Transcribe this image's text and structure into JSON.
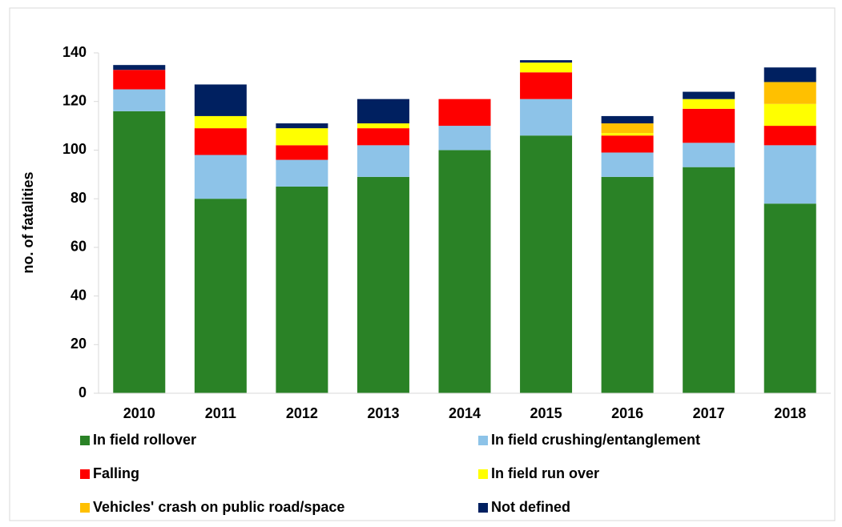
{
  "chart_data": {
    "type": "stacked_bar",
    "y_label": "no. of fatalities",
    "categories": [
      "2010",
      "2011",
      "2012",
      "2013",
      "2014",
      "2015",
      "2016",
      "2017",
      "2018"
    ],
    "series": [
      {
        "name": "In field rollover",
        "color": "#2a8226",
        "values": [
          116,
          80,
          85,
          89,
          100,
          106,
          89,
          93,
          78
        ]
      },
      {
        "name": "In field crushing/entanglement",
        "color": "#8dc3e8",
        "values": [
          9,
          18,
          11,
          13,
          10,
          15,
          10,
          10,
          24
        ]
      },
      {
        "name": "Falling",
        "color": "#fe0000",
        "values": [
          8,
          11,
          6,
          7,
          11,
          11,
          7,
          14,
          8
        ]
      },
      {
        "name": "In field run over",
        "color": "#ffff00",
        "values": [
          0,
          5,
          7,
          2,
          0,
          4,
          1,
          4,
          9
        ]
      },
      {
        "name": "Vehicles' crash on public road/space",
        "color": "#ffc000",
        "values": [
          0,
          0,
          0,
          0,
          0,
          0,
          4,
          0,
          9
        ]
      },
      {
        "name": "Not defined",
        "color": "#002060",
        "values": [
          2,
          13,
          2,
          10,
          0,
          1,
          3,
          3,
          6
        ]
      }
    ],
    "ylim": [
      0,
      140
    ],
    "yticks": [
      0,
      20,
      40,
      60,
      80,
      100,
      120,
      140
    ],
    "grid": false
  }
}
